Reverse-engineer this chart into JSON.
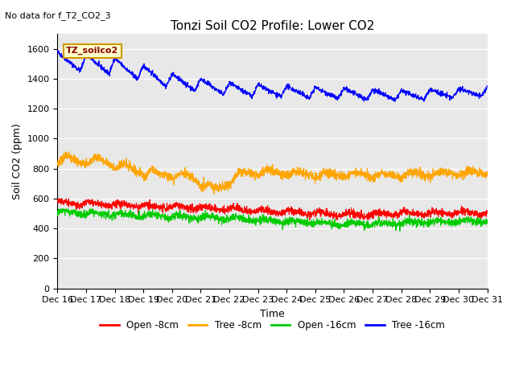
{
  "title": "Tonzi Soil CO2 Profile: Lower CO2",
  "subtitle": "No data for f_T2_CO2_3",
  "ylabel": "Soil CO2 (ppm)",
  "xlabel": "Time",
  "ylim": [
    0,
    1700
  ],
  "yticks": [
    0,
    200,
    400,
    600,
    800,
    1000,
    1200,
    1400,
    1600
  ],
  "xlim_days": [
    16,
    31
  ],
  "xtick_labels": [
    "Dec 16",
    "Dec 17",
    "Dec 18",
    "Dec 19",
    "Dec 20",
    "Dec 21",
    "Dec 22",
    "Dec 23",
    "Dec 24",
    "Dec 25",
    "Dec 26",
    "Dec 27",
    "Dec 28",
    "Dec 29",
    "Dec 30",
    "Dec 31"
  ],
  "legend_label": "TZ_soilco2",
  "legend_box_color": "#ffffcc",
  "legend_box_edge": "#cc9900",
  "bg_color": "#e8e8e8",
  "colors": {
    "open_8cm": "#ff0000",
    "tree_8cm": "#ffa500",
    "open_16cm": "#00cc00",
    "tree_16cm": "#0000ff"
  },
  "series_labels": [
    "Open -8cm",
    "Tree -8cm",
    "Open -16cm",
    "Tree -16cm"
  ]
}
